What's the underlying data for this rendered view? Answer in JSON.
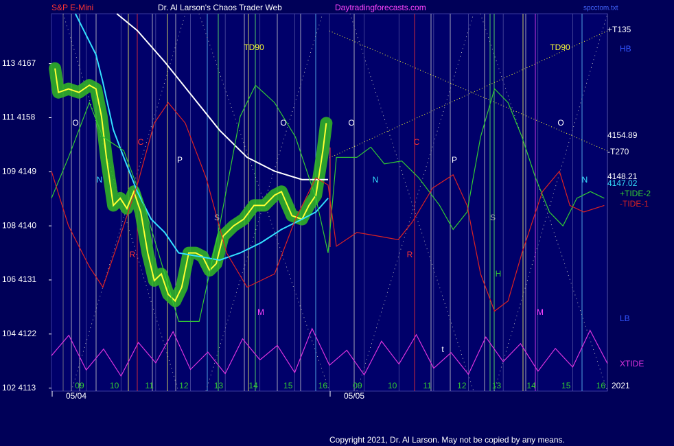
{
  "chart_data": {
    "type": "line",
    "header": {
      "symbol": "S&P E-Mini",
      "title": "Dr. Al Larson's Chaos Trader Web",
      "site": "Daytradingforecasts.com",
      "file": "spcctom.txt"
    },
    "xlim": [
      0,
      16
    ],
    "xticks": [
      {
        "value": 1,
        "label": "09"
      },
      {
        "value": 2,
        "label": "10"
      },
      {
        "value": 3,
        "label": "11"
      },
      {
        "value": 4,
        "label": "12"
      },
      {
        "value": 5,
        "label": "13"
      },
      {
        "value": 6,
        "label": "14"
      },
      {
        "value": 7,
        "label": "15"
      },
      {
        "value": 8,
        "label": "16"
      },
      {
        "value": 9,
        "label": "09"
      },
      {
        "value": 10,
        "label": "10"
      },
      {
        "value": 11,
        "label": "11"
      },
      {
        "value": 12,
        "label": "12"
      },
      {
        "value": 13,
        "label": "13"
      },
      {
        "value": 14,
        "label": "14"
      },
      {
        "value": 15,
        "label": "15"
      },
      {
        "value": 16,
        "label": "16"
      }
    ],
    "dates": [
      "05/04",
      "05/05"
    ],
    "ylim": [
      4112.5,
      4175.3
    ],
    "yticks": [
      {
        "value": 4167,
        "label": "113 4167"
      },
      {
        "value": 4158,
        "label": "111 4158"
      },
      {
        "value": 4149,
        "label": "109 4149"
      },
      {
        "value": 4140,
        "label": "108 4140"
      },
      {
        "value": 4131,
        "label": "106 4131"
      },
      {
        "value": 4122,
        "label": "104 4122"
      },
      {
        "value": 4113,
        "label": "102 4113"
      }
    ],
    "series": [
      {
        "color": "#ffff33",
        "x": [
          0.1,
          0.2,
          0.49,
          0.79,
          1.09,
          1.28,
          1.44,
          1.58,
          1.78,
          1.98,
          2.17,
          2.37,
          2.57,
          2.77,
          2.96,
          3.16,
          3.36,
          3.56,
          3.75,
          3.95,
          4.15,
          4.35,
          4.55,
          4.74,
          4.94,
          5.24,
          5.53,
          5.83,
          6.13,
          6.42,
          6.62,
          6.92,
          7.21,
          7.41,
          7.61,
          7.81,
          7.91
        ],
        "values": [
          4166.2,
          4162.2,
          4162.8,
          4162.2,
          4163.4,
          4162.8,
          4158.2,
          4151.4,
          4143.4,
          4144.6,
          4142.9,
          4145.7,
          4142.3,
          4135.5,
          4130.9,
          4132.0,
          4128.6,
          4127.5,
          4129.8,
          4135.5,
          4135.5,
          4134.9,
          4132.6,
          4133.7,
          4138.3,
          4140.0,
          4141.1,
          4143.4,
          4143.4,
          4145.1,
          4145.7,
          4141.7,
          4141.1,
          4143.4,
          4145.1,
          4152.5,
          4157.1
        ]
      },
      {
        "color": "#ffffff",
        "x": [
          1.88,
          2.47,
          3.26,
          4.05,
          4.84,
          5.63,
          6.42,
          7.21,
          7.96
        ],
        "values": [
          4175.3,
          4172.5,
          4167.3,
          4161.6,
          4155.9,
          4151.4,
          4149.1,
          4147.7,
          4147.7
        ]
      },
      {
        "color": "#33e0ff",
        "x": [
          0.69,
          1.28,
          1.48,
          1.78,
          2.08,
          2.47,
          2.87,
          3.26,
          3.66,
          4.25,
          4.84,
          5.43,
          6.03,
          6.62,
          7.21,
          7.61,
          7.96
        ],
        "values": [
          4175.3,
          4168.5,
          4163.9,
          4156.0,
          4151.4,
          4145.7,
          4141.1,
          4138.9,
          4135.5,
          4134.9,
          4134.3,
          4135.5,
          4137.2,
          4139.4,
          4141.1,
          4142.3,
          4144.6
        ]
      },
      {
        "name": "+TIDE-2",
        "color": "#33cc33",
        "x": [
          0,
          0.49,
          1.09,
          1.48,
          2.08,
          2.67,
          3.26,
          3.66,
          4.25,
          4.84,
          5.43,
          5.87,
          6.42,
          7.02,
          7.61,
          7.96,
          8.2,
          8.79,
          9.19,
          9.58,
          10.08,
          10.57,
          11.17,
          11.56,
          11.96,
          12.35,
          12.75,
          13.14,
          13.54,
          13.93,
          14.33,
          14.72,
          15.12,
          15.51,
          15.91
        ],
        "values": [
          4144.6,
          4151.4,
          4160.5,
          4154.8,
          4152.5,
          4143.4,
          4132.0,
          4124.1,
          4124.1,
          4140.0,
          4158.2,
          4163.4,
          4160.5,
          4154.8,
          4144.6,
          4135.5,
          4151.4,
          4151.4,
          4153.1,
          4150.3,
          4150.8,
          4148.0,
          4143.4,
          4139.4,
          4142.3,
          4154.8,
          4162.8,
          4160.5,
          4154.8,
          4148.0,
          4142.3,
          4140.0,
          4144.6,
          4145.7,
          4144.6
        ]
      },
      {
        "name": "-TIDE-1",
        "color": "#dd2222",
        "x": [
          0,
          0.49,
          1.09,
          1.48,
          1.88,
          2.47,
          2.96,
          3.36,
          3.85,
          4.45,
          5.04,
          5.63,
          6.42,
          7.02,
          7.61,
          7.96,
          8.2,
          8.79,
          9.39,
          9.98,
          10.38,
          10.97,
          11.56,
          11.96,
          12.35,
          12.75,
          13.14,
          13.54,
          14.13,
          14.62,
          14.92,
          15.32,
          15.91
        ],
        "values": [
          4149.1,
          4140.0,
          4133.2,
          4129.8,
          4136.6,
          4146.8,
          4157.1,
          4160.5,
          4157.1,
          4148.0,
          4135.5,
          4129.8,
          4132.0,
          4141.1,
          4148.0,
          4146.8,
          4136.6,
          4138.9,
          4138.3,
          4137.7,
          4140.6,
          4146.3,
          4148.5,
          4143.4,
          4132.0,
          4125.8,
          4127.5,
          4135.5,
          4145.7,
          4149.1,
          4143.4,
          4142.3,
          4143.4
        ]
      },
      {
        "name": "XTIDE",
        "color": "#dd33dd",
        "x": [
          0,
          0.5,
          1,
          1.5,
          2,
          2.5,
          3,
          3.5,
          4,
          4.5,
          5,
          5.5,
          6,
          6.5,
          7,
          7.5,
          8,
          8.5,
          9,
          9.5,
          10,
          10.5,
          11,
          11.5,
          12,
          12.5,
          13,
          13.5,
          14,
          14.5,
          15,
          15.5,
          16
        ],
        "values": [
          4118.4,
          4121.8,
          4116.0,
          4119.5,
          4115.0,
          4120.6,
          4117.2,
          4122.4,
          4116.1,
          4119.0,
          4115.4,
          4121.2,
          4117.7,
          4120.1,
          4115.6,
          4122.9,
          4116.8,
          4119.3,
          4115.2,
          4120.8,
          4117.0,
          4121.9,
          4116.3,
          4118.9,
          4115.3,
          4121.5,
          4117.4,
          4120.4,
          4115.8,
          4119.6,
          4116.5,
          4122.6,
          4117.1
        ]
      }
    ],
    "annotations": [
      "O",
      "O",
      "O",
      "O",
      "C",
      "C",
      "P",
      "P",
      "N",
      "N",
      "N",
      "R",
      "R",
      "S",
      "S",
      "M",
      "M",
      "TD90",
      "TD90",
      "H",
      "t"
    ],
    "right_labels": [
      "+T135",
      "HB",
      4154.89,
      "-T270",
      4148.21,
      4147.02,
      "LB",
      "2021"
    ],
    "copyright": "Copyright 2021, Dr. Al Larson. May not be copied by any means."
  }
}
